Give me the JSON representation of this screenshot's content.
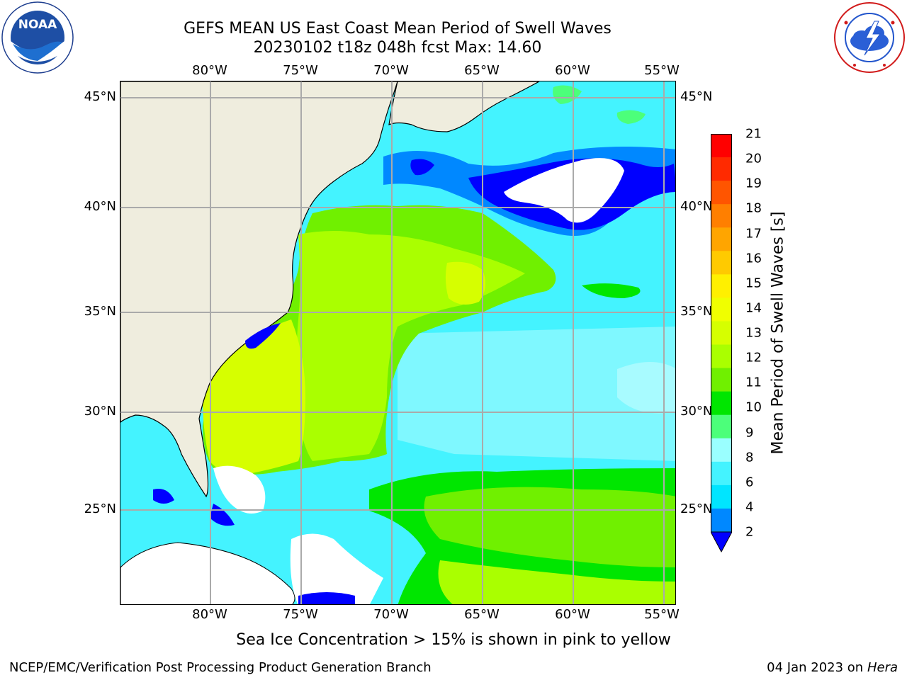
{
  "title": {
    "line1": "GEFS MEAN US East Coast Mean Period of Swell Waves",
    "line2": "20230102 t18z 048h fcst   Max: 14.60"
  },
  "logos": {
    "left": {
      "name": "NOAA",
      "text": "NOAA",
      "ring_text": "NATIONAL OCEANIC AND ATMOSPHERIC ADMINISTRATION · U.S. DEPARTMENT OF COMMERCE"
    },
    "right": {
      "name": "National Weather Service",
      "ring_text": "NATIONAL WEATHER SERVICE"
    }
  },
  "map": {
    "lon_labels": [
      "80°W",
      "75°W",
      "70°W",
      "65°W",
      "60°W",
      "55°W"
    ],
    "lat_labels": [
      "45°N",
      "40°N",
      "35°N",
      "30°N",
      "25°N"
    ],
    "land_color": "#efedde",
    "ocean_default_color": "#44f3ff"
  },
  "colorbar": {
    "label": "Mean Period of Swell Waves [s]",
    "ticks": [
      "21",
      "20",
      "19",
      "18",
      "17",
      "16",
      "15",
      "14",
      "13",
      "12",
      "11",
      "10",
      "9",
      "8",
      "6",
      "4",
      "2"
    ],
    "colors": [
      "#ff0000",
      "#ff2a00",
      "#ff5500",
      "#ff7f00",
      "#ffa500",
      "#ffca00",
      "#fff000",
      "#f0ff00",
      "#d6ff00",
      "#aaff00",
      "#70f000",
      "#00e600",
      "#4cff7a",
      "#9affff",
      "#44f3ff",
      "#00e5ff",
      "#0088ff"
    ],
    "extend_color": "#0000ff"
  },
  "note": "Sea Ice Concentration > 15% is shown in pink to yellow",
  "footer": {
    "left": "NCEP/EMC/Verification Post Processing Product Generation Branch",
    "date": "04 Jan 2023 on ",
    "machine": "Hera"
  }
}
